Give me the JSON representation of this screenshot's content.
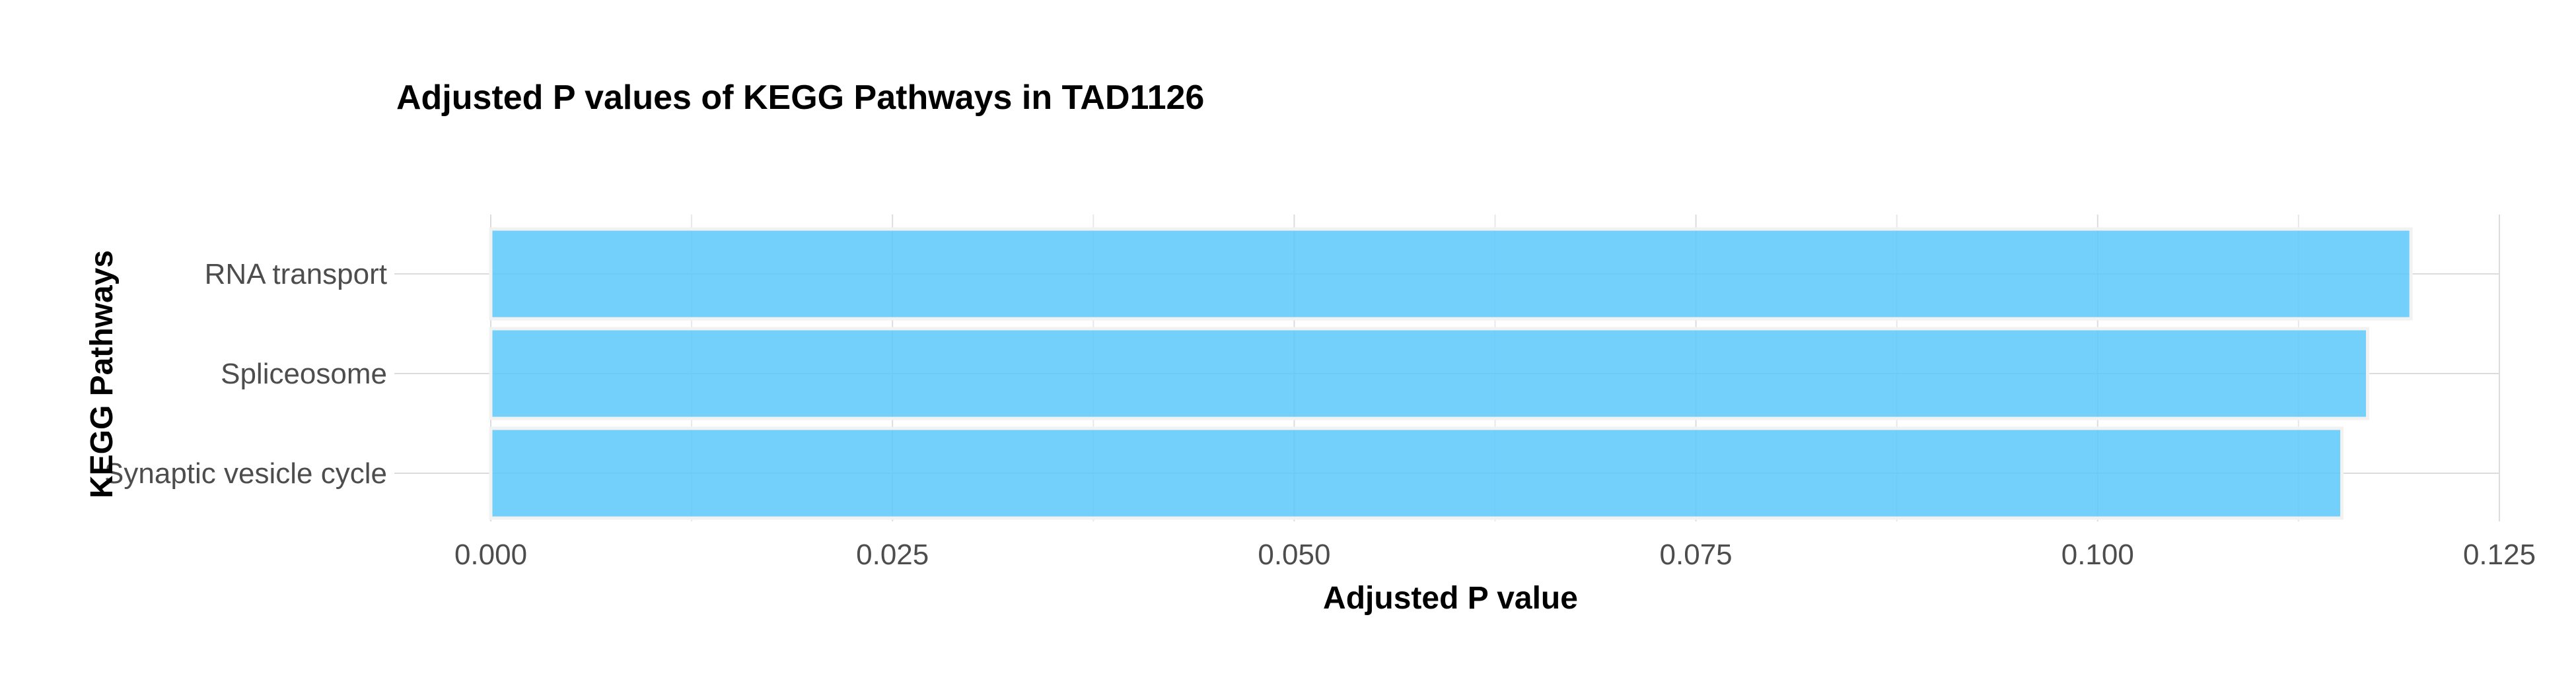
{
  "chart_data": {
    "type": "bar",
    "orientation": "horizontal",
    "title": "Adjusted P values of KEGG Pathways in TAD1126",
    "xlabel": "Adjusted P value",
    "ylabel": "KEGG Pathways",
    "categories": [
      "RNA transport",
      "Spliceosome",
      "Synaptic vesicle cycle"
    ],
    "values": [
      0.1195,
      0.1168,
      0.1152
    ],
    "xlim": [
      0,
      0.125
    ],
    "x_ticks": [
      "0.000",
      "0.025",
      "0.050",
      "0.075",
      "0.100",
      "0.125"
    ],
    "grid": true,
    "legend": "none",
    "bar_color": "#5bc8fa"
  }
}
